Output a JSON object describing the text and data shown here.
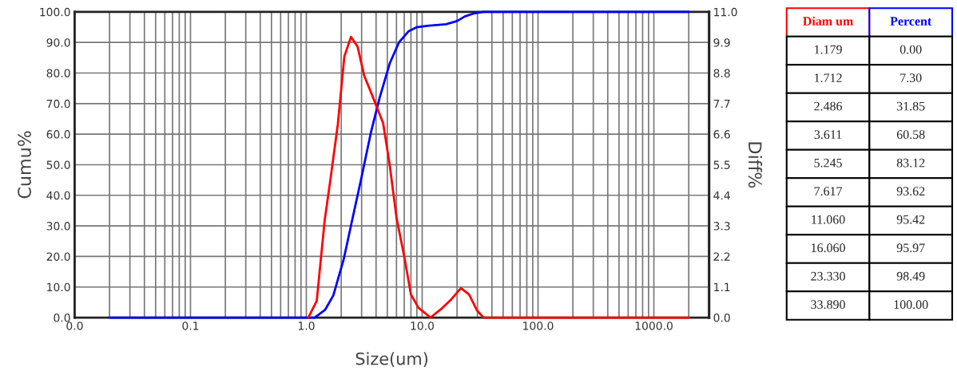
{
  "chart_data": [
    {
      "type": "line",
      "xlabel": "Size(um)",
      "ylabel": "Cumu%",
      "y2label": "Diff%",
      "log": "x",
      "grid": true,
      "legend": false,
      "marker": "none",
      "line_style": "solid",
      "xlim": [
        0.01,
        3000
      ],
      "xticks": [
        {
          "value": 0.01,
          "label": "0.0"
        },
        {
          "value": 0.1,
          "label": "0.1"
        },
        {
          "value": 1,
          "label": "1.0"
        },
        {
          "value": 10,
          "label": "10.0"
        },
        {
          "value": 100,
          "label": "100.0"
        },
        {
          "value": 1000,
          "label": "1000.0"
        }
      ],
      "ylim": [
        0,
        100
      ],
      "yticks": [
        {
          "value": 0,
          "label": "0.0"
        },
        {
          "value": 10,
          "label": "10.0"
        },
        {
          "value": 20,
          "label": "20.0"
        },
        {
          "value": 30,
          "label": "30.0"
        },
        {
          "value": 40,
          "label": "40.0"
        },
        {
          "value": 50,
          "label": "50.0"
        },
        {
          "value": 60,
          "label": "60.0"
        },
        {
          "value": 70,
          "label": "70.0"
        },
        {
          "value": 80,
          "label": "80.0"
        },
        {
          "value": 90,
          "label": "90.0"
        },
        {
          "value": 100,
          "label": "100.0"
        }
      ],
      "y2lim": [
        0,
        11
      ],
      "y2ticks": [
        {
          "value": 0,
          "label": "0.0"
        },
        1.1,
        2.2,
        3.3,
        4.4,
        5.5,
        6.6,
        7.7,
        8.8,
        9.9,
        {
          "value": 11,
          "label": "11.0"
        }
      ],
      "series": [
        {
          "color": "#0000ff",
          "x": [
            0.02,
            1.179,
            1.45,
            1.712,
            2.1,
            2.486,
            3.0,
            3.611,
            4.3,
            5.245,
            6.3,
            7.617,
            9.0,
            11.06,
            16.06,
            20,
            23.33,
            28,
            33.89,
            2000
          ],
          "values": [
            0,
            0,
            2.5,
            7.3,
            19,
            31.85,
            46,
            60.58,
            72,
            83.12,
            90,
            93.62,
            95,
            95.42,
            95.97,
            97,
            98.49,
            99.5,
            100,
            100
          ]
        },
        {
          "color": "#ff0000",
          "axis": "y2",
          "x": [
            1.04,
            1.23,
            1.44,
            1.6,
            1.87,
            2.13,
            2.43,
            2.77,
            3.16,
            3.7,
            4.6,
            5.24,
            6.0,
            7.0,
            8.0,
            9.3,
            11.8,
            15,
            17.6,
            21.6,
            25.4,
            29.7,
            33.8,
            2000
          ],
          "values": [
            0,
            0.6,
            3.5,
            4.85,
            6.95,
            9.4,
            10.1,
            9.75,
            8.7,
            8.0,
            7.0,
            5.5,
            3.6,
            2.2,
            0.83,
            0.35,
            0,
            0.35,
            0.63,
            1.06,
            0.83,
            0.26,
            0,
            0
          ]
        }
      ]
    },
    {
      "type": "other",
      "annotations": [
        "Diam um",
        "Percent",
        "1.179",
        "0.00",
        "1.712",
        "7.30",
        "2.486",
        "31.85",
        "3.611",
        "60.58",
        "5.245",
        "83.12",
        "7.617",
        "93.62",
        "11.060",
        "95.42",
        "16.060",
        "95.97",
        "23.330",
        "98.49",
        "33.890",
        "100.00"
      ]
    }
  ]
}
